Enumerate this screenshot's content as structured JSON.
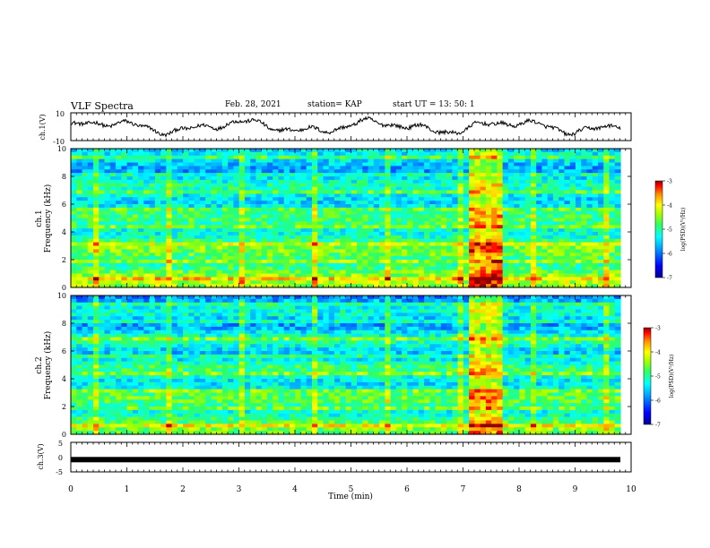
{
  "header": {
    "title": "VLF Spectra",
    "date": "Feb. 28, 2021",
    "station": "station= KAP",
    "start": "start  UT  =   13: 50: 1"
  },
  "chart_data": [
    {
      "type": "line",
      "name": "ch1-waveform",
      "ylabel": "ch.1(V)",
      "ylim": [
        -10,
        10
      ],
      "yticks": [
        "10",
        "-10"
      ],
      "xlim": [
        0,
        10
      ]
    },
    {
      "type": "heatmap",
      "name": "ch1-spectrogram",
      "ylabel": "ch.1",
      "ylabel2": "Frequency (kHz)",
      "ylim": [
        0,
        10
      ],
      "yticks": [
        "0",
        "2",
        "4",
        "6",
        "8",
        "10"
      ],
      "xlim": [
        0,
        10
      ],
      "colorbar": {
        "label": "log(PSD)(V²/Hz)",
        "ticks": [
          "-3",
          "-4",
          "-5",
          "-6",
          "-7"
        ],
        "range": [
          -7,
          -3
        ],
        "colors": [
          "#00008f",
          "#0000ff",
          "#00a0ff",
          "#00ffff",
          "#30ff60",
          "#a0ff00",
          "#ffff00",
          "#ff9000",
          "#ff0000",
          "#8f0000"
        ]
      },
      "bright_burst_minutes": [
        7.05,
        7.7
      ]
    },
    {
      "type": "heatmap",
      "name": "ch2-spectrogram",
      "ylabel": "ch.2",
      "ylabel2": "Frequency (kHz)",
      "ylim": [
        0,
        10
      ],
      "yticks": [
        "0",
        "2",
        "4",
        "6",
        "8",
        "10"
      ],
      "xlim": [
        0,
        10
      ],
      "colorbar": {
        "label": "log(PSD)(V²/Hz)",
        "ticks": [
          "-3",
          "-4",
          "-5",
          "-6",
          "-7"
        ],
        "range": [
          -7,
          -3
        ]
      },
      "bright_burst_minutes": [
        7.05,
        7.7
      ]
    },
    {
      "type": "line",
      "name": "ch3-level",
      "ylabel": "ch.3(V)",
      "ylim": [
        -5,
        5
      ],
      "yticks": [
        "5",
        "0",
        "-5"
      ],
      "xlim": [
        0,
        10
      ],
      "level_value": -1,
      "level_end_minute": 9.8
    }
  ],
  "xaxis": {
    "label": "Time  (min)",
    "ticks": [
      "0",
      "1",
      "2",
      "3",
      "4",
      "5",
      "6",
      "7",
      "8",
      "9",
      "10"
    ],
    "data_end_minute": 9.8
  }
}
